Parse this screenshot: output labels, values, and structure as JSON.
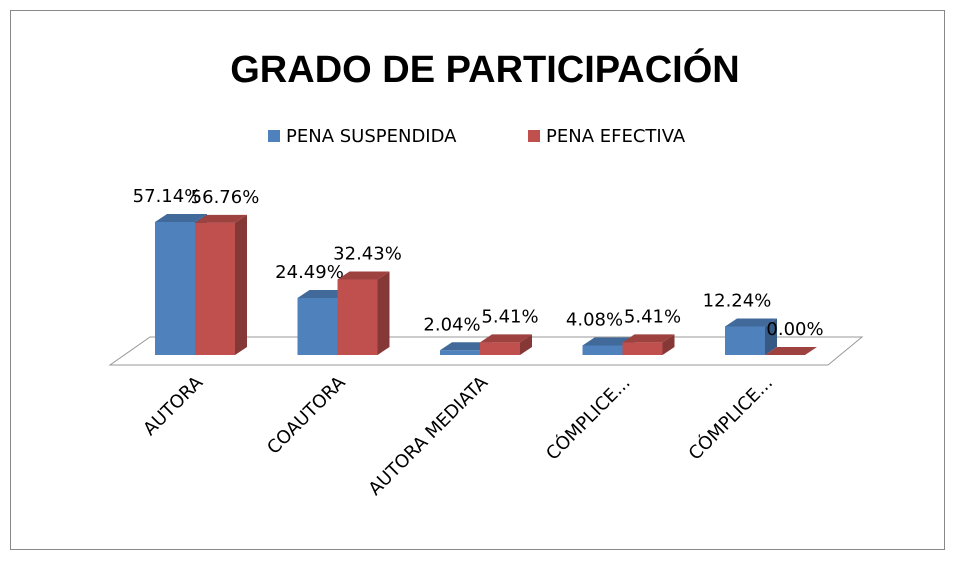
{
  "chart_data": {
    "type": "bar3d",
    "title": "GRADO DE PARTICIPACIÓN",
    "categories": [
      "AUTORA",
      "COAUTORA",
      "AUTORA MEDIATA",
      "CÓMPLICE...",
      "CÓMPLICE..."
    ],
    "series": [
      {
        "name": "PENA SUSPENDIDA",
        "color": "#4f81bd",
        "values": [
          57.14,
          24.49,
          2.04,
          4.08,
          12.24
        ],
        "value_labels": [
          "57.14%",
          "24.49%",
          "2.04%",
          "4.08%",
          "12.24%"
        ]
      },
      {
        "name": "PENA EFECTIVA",
        "color": "#c0504d",
        "values": [
          56.76,
          32.43,
          5.41,
          5.41,
          0
        ],
        "value_labels": [
          "56.76%",
          "32.43%",
          "5.41%",
          "5.41%",
          "0.00%"
        ]
      }
    ],
    "legend": "top"
  }
}
